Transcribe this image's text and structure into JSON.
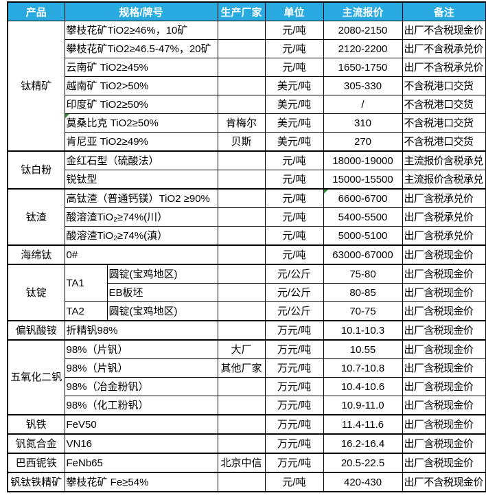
{
  "colors": {
    "header_bg": "#29ABE2",
    "header_text": "#FFFFFF",
    "border": "#000000",
    "marker_green": "#2E8B2E"
  },
  "table": {
    "header": [
      "产品",
      "规格/牌号",
      "生产厂家",
      "单位",
      "主流报价",
      "备注"
    ],
    "rows": [
      {
        "cells": [
          {
            "t": "钛精矿",
            "rs": 7,
            "col": "product"
          },
          {
            "t": "攀枝花矿TiO2≥46%，10矿",
            "cs": 2,
            "col": "spec"
          },
          {
            "t": "",
            "col": "mfr"
          },
          {
            "t": "元/吨",
            "col": "unit"
          },
          {
            "t": "2080-2150",
            "col": "price"
          },
          {
            "t": "出厂不含税现金价",
            "col": "note"
          }
        ]
      },
      {
        "cells": [
          {
            "t": "攀枝花矿TiO2≥46.5-47%，20矿",
            "cs": 2,
            "col": "spec"
          },
          {
            "t": "",
            "col": "mfr"
          },
          {
            "t": "元/吨",
            "col": "unit"
          },
          {
            "t": "2120-2200",
            "col": "price"
          },
          {
            "t": "出厂不含税承兑价",
            "col": "note"
          }
        ]
      },
      {
        "cells": [
          {
            "t": "云南矿 TiO2≥45%",
            "cs": 2,
            "col": "spec"
          },
          {
            "t": "",
            "col": "mfr"
          },
          {
            "t": "元/吨",
            "col": "unit"
          },
          {
            "t": "1650-1750",
            "col": "price"
          },
          {
            "t": "出厂不含税承兑价",
            "col": "note"
          }
        ]
      },
      {
        "cells": [
          {
            "t": "越南矿 TiO2>50%",
            "cs": 2,
            "col": "spec"
          },
          {
            "t": "",
            "col": "mfr"
          },
          {
            "t": "美元/吨",
            "col": "unit"
          },
          {
            "t": "305-330",
            "col": "price"
          },
          {
            "t": "不含税港口交货",
            "col": "note"
          }
        ]
      },
      {
        "cells": [
          {
            "t": "印度矿 TiO2≥50%",
            "cs": 2,
            "col": "spec"
          },
          {
            "t": "",
            "col": "mfr"
          },
          {
            "t": "美元/吨",
            "col": "unit"
          },
          {
            "t": "/",
            "col": "price"
          },
          {
            "t": "不含税港口交货",
            "col": "note"
          }
        ]
      },
      {
        "cells": [
          {
            "t": "莫桑比克 TiO2≥50%",
            "cs": 2,
            "col": "spec",
            "mk": true
          },
          {
            "t": "肯梅尔",
            "col": "mfr"
          },
          {
            "t": "美元/吨",
            "col": "unit"
          },
          {
            "t": "310",
            "col": "price"
          },
          {
            "t": "不含税港口交货",
            "col": "note"
          }
        ]
      },
      {
        "cells": [
          {
            "t": "肯尼亚 TiO2≥49%",
            "cs": 2,
            "col": "spec"
          },
          {
            "t": "贝斯",
            "col": "mfr"
          },
          {
            "t": "美元/吨",
            "col": "unit"
          },
          {
            "t": "270",
            "col": "price"
          },
          {
            "t": "不含税港口交货",
            "col": "note"
          }
        ]
      },
      {
        "gs": true,
        "cells": [
          {
            "t": "钛白粉",
            "rs": 2,
            "col": "product"
          },
          {
            "t": "金红石型（硫酸法）",
            "cs": 2,
            "col": "spec"
          },
          {
            "t": "",
            "col": "mfr"
          },
          {
            "t": "元/吨",
            "col": "unit"
          },
          {
            "t": "18000-19000",
            "col": "price"
          },
          {
            "t": "主流报价含税承兑",
            "col": "note"
          }
        ]
      },
      {
        "cells": [
          {
            "t": "锐钛型",
            "cs": 2,
            "col": "spec"
          },
          {
            "t": "",
            "col": "mfr"
          },
          {
            "t": "元/吨",
            "col": "unit"
          },
          {
            "t": "15000-15500",
            "col": "price"
          },
          {
            "t": "主流报价含税承兑",
            "col": "note"
          }
        ]
      },
      {
        "gs": true,
        "cells": [
          {
            "t": "钛渣",
            "rs": 3,
            "col": "product"
          },
          {
            "t": "高钛渣（普通钙镁）TiO2 ≥90%",
            "cs": 2,
            "col": "spec"
          },
          {
            "t": "",
            "col": "mfr"
          },
          {
            "t": "元/吨",
            "col": "unit"
          },
          {
            "t": "6600-6700",
            "col": "price",
            "mk": true
          },
          {
            "t": "出厂含税承兑价",
            "col": "note"
          }
        ]
      },
      {
        "cells": [
          {
            "t": "酸溶渣TiO₂≥74%(川）",
            "cs": 2,
            "col": "spec"
          },
          {
            "t": "",
            "col": "mfr"
          },
          {
            "t": "元/吨",
            "col": "unit"
          },
          {
            "t": "5400-5500",
            "col": "price"
          },
          {
            "t": "出厂含税承兑价",
            "col": "note"
          }
        ]
      },
      {
        "cells": [
          {
            "t": "酸溶渣TiO₂≥74%(滇）",
            "cs": 2,
            "col": "spec"
          },
          {
            "t": "",
            "col": "mfr"
          },
          {
            "t": "元/吨",
            "col": "unit"
          },
          {
            "t": "5000-5100",
            "col": "price"
          },
          {
            "t": "出厂含税承兑价",
            "col": "note"
          }
        ]
      },
      {
        "gs": true,
        "cells": [
          {
            "t": "海绵钛",
            "col": "product"
          },
          {
            "t": "0#",
            "cs": 2,
            "col": "spec"
          },
          {
            "t": "",
            "col": "mfr"
          },
          {
            "t": "元/吨",
            "col": "unit"
          },
          {
            "t": "63000-67000",
            "col": "price"
          },
          {
            "t": "出厂含税现金价",
            "col": "note"
          }
        ]
      },
      {
        "gs": true,
        "cells": [
          {
            "t": "钛锭",
            "rs": 3,
            "col": "product"
          },
          {
            "t": "TA1",
            "rs": 2,
            "col": "specA"
          },
          {
            "t": "圆锭(宝鸡地区)",
            "col": "specB"
          },
          {
            "t": "",
            "col": "mfr"
          },
          {
            "t": "元/公斤",
            "col": "unit"
          },
          {
            "t": "75-80",
            "col": "price"
          },
          {
            "t": "出厂含税现金价",
            "col": "note"
          }
        ]
      },
      {
        "cells": [
          {
            "t": "EB板坯",
            "col": "specB"
          },
          {
            "t": "",
            "col": "mfr"
          },
          {
            "t": "元/公斤",
            "col": "unit"
          },
          {
            "t": "80-85",
            "col": "price"
          },
          {
            "t": "出厂含税现金价",
            "col": "note"
          }
        ]
      },
      {
        "cells": [
          {
            "t": "TA2",
            "col": "specA"
          },
          {
            "t": "圆锭(宝鸡地区)",
            "col": "specB"
          },
          {
            "t": "",
            "col": "mfr"
          },
          {
            "t": "元/公斤",
            "col": "unit"
          },
          {
            "t": "70-75",
            "col": "price"
          },
          {
            "t": "出厂含税现金价",
            "col": "note"
          }
        ]
      },
      {
        "gs": true,
        "cells": [
          {
            "t": "偏钒酸铵",
            "col": "product"
          },
          {
            "t": "折精钒98%",
            "cs": 2,
            "col": "spec"
          },
          {
            "t": "",
            "col": "mfr"
          },
          {
            "t": "万元/吨",
            "col": "unit"
          },
          {
            "t": "10.1-10.3",
            "col": "price"
          },
          {
            "t": "出厂含税现金价",
            "col": "note"
          }
        ]
      },
      {
        "gs": true,
        "cells": [
          {
            "t": "五氧化二钒",
            "rs": 4,
            "col": "product"
          },
          {
            "t": "98%（片钒）",
            "cs": 2,
            "col": "spec"
          },
          {
            "t": "大厂",
            "col": "mfr"
          },
          {
            "t": "万元/吨",
            "col": "unit"
          },
          {
            "t": "10.55",
            "col": "price"
          },
          {
            "t": "出厂含税现金价",
            "col": "note"
          }
        ]
      },
      {
        "cells": [
          {
            "t": "98%（片钒）",
            "cs": 2,
            "col": "spec"
          },
          {
            "t": "其他厂家",
            "col": "mfr"
          },
          {
            "t": "万元/吨",
            "col": "unit"
          },
          {
            "t": "10.7-10.8",
            "col": "price"
          },
          {
            "t": "出厂含税现金价",
            "col": "note"
          }
        ]
      },
      {
        "cells": [
          {
            "t": "98%（冶金粉钒）",
            "cs": 2,
            "col": "spec"
          },
          {
            "t": "",
            "col": "mfr"
          },
          {
            "t": "万元/吨",
            "col": "unit"
          },
          {
            "t": "10.4-10.6",
            "col": "price"
          },
          {
            "t": "出厂含税现金价",
            "col": "note"
          }
        ]
      },
      {
        "cells": [
          {
            "t": "98%（化工粉钒）",
            "cs": 2,
            "col": "spec"
          },
          {
            "t": "",
            "col": "mfr"
          },
          {
            "t": "万元/吨",
            "col": "unit"
          },
          {
            "t": "10.9-11.0",
            "col": "price"
          },
          {
            "t": "出厂含税现金价",
            "col": "note"
          }
        ]
      },
      {
        "gs": true,
        "cells": [
          {
            "t": "钒铁",
            "col": "product"
          },
          {
            "t": "FeV50",
            "cs": 2,
            "col": "spec"
          },
          {
            "t": "",
            "col": "mfr"
          },
          {
            "t": "万元/吨",
            "col": "unit"
          },
          {
            "t": "11.4-11.6",
            "col": "price"
          },
          {
            "t": "出厂含税现金价",
            "col": "note"
          }
        ]
      },
      {
        "gs": true,
        "cells": [
          {
            "t": "钒氮合金",
            "col": "product"
          },
          {
            "t": "VN16",
            "cs": 2,
            "col": "spec"
          },
          {
            "t": "",
            "col": "mfr"
          },
          {
            "t": "万元/吨",
            "col": "unit"
          },
          {
            "t": "16.2-16.4",
            "col": "price"
          },
          {
            "t": "出厂含税现金价",
            "col": "note"
          }
        ]
      },
      {
        "gs": true,
        "cells": [
          {
            "t": "巴西铌铁",
            "col": "product"
          },
          {
            "t": "FeNb65",
            "cs": 2,
            "col": "spec"
          },
          {
            "t": "北京中信",
            "col": "mfr"
          },
          {
            "t": "万元/吨",
            "col": "unit"
          },
          {
            "t": "20.5-22.5",
            "col": "price"
          },
          {
            "t": "出厂含税现金价",
            "col": "note"
          }
        ]
      },
      {
        "gs": true,
        "cells": [
          {
            "t": "钒钛铁精矿",
            "col": "product"
          },
          {
            "t": "攀枝花矿 Fe≥54%",
            "cs": 2,
            "col": "spec"
          },
          {
            "t": "",
            "col": "mfr"
          },
          {
            "t": "元/吨",
            "col": "unit"
          },
          {
            "t": "420-430",
            "col": "price"
          },
          {
            "t": "出厂不含税现金价",
            "col": "note"
          }
        ]
      }
    ]
  }
}
